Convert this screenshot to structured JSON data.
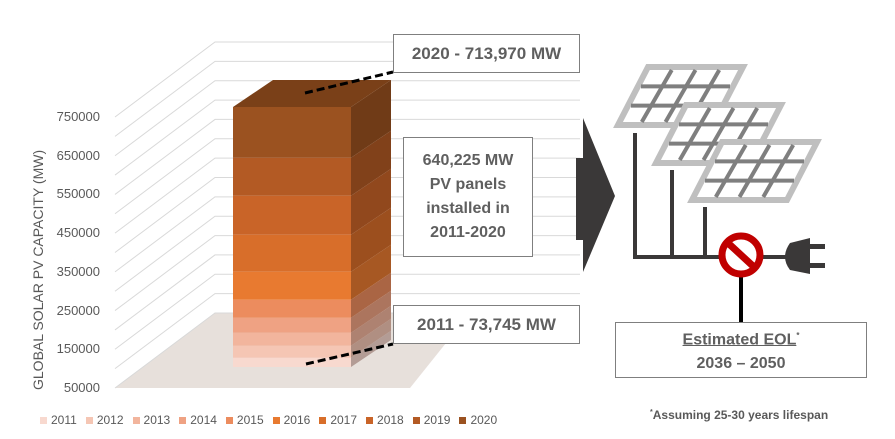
{
  "chart_data": {
    "type": "bar",
    "subtype": "3d-stacked-column",
    "ylabel": "GLOBAL SOLAR PV CAPACITY  (MW)",
    "ylim": [
      50000,
      750000
    ],
    "yticks": [
      "50000",
      "150000",
      "250000",
      "350000",
      "450000",
      "550000",
      "650000",
      "750000"
    ],
    "grid": true,
    "legend_position": "bottom",
    "series": [
      {
        "name": "2011",
        "value": 73745,
        "color": "#f8d9cf"
      },
      {
        "name": "2012",
        "value": 30600,
        "color": "#f5c6b4"
      },
      {
        "name": "2013",
        "value": 33200,
        "color": "#f2b59d"
      },
      {
        "name": "2014",
        "value": 38300,
        "color": "#efa283"
      },
      {
        "name": "2015",
        "value": 46000,
        "color": "#ec8c5e"
      },
      {
        "name": "2016",
        "value": 71500,
        "color": "#e87a30"
      },
      {
        "name": "2017",
        "value": 94500,
        "color": "#d86e2a"
      },
      {
        "name": "2018",
        "value": 99600,
        "color": "#c96428"
      },
      {
        "name": "2019",
        "value": 97000,
        "color": "#b35a24"
      },
      {
        "name": "2020",
        "value": 129525,
        "color": "#9b5220"
      }
    ]
  },
  "annotations": {
    "top_label": "2020 - 713,970 MW",
    "bottom_label": "2011  -  73,745 MW",
    "middle_lines": [
      "640,225 MW",
      "PV panels",
      "installed in",
      "2011-2020"
    ],
    "eol_title": "Estimated EOL",
    "eol_mark": "*",
    "eol_range": "2036 – 2050",
    "footnote_mark": "*",
    "footnote": "Assuming 25-30 years lifespan"
  },
  "icons": [
    "right-arrow-icon",
    "solar-panel-icon",
    "prohibited-icon",
    "plug-icon"
  ],
  "colors": {
    "arrow": "#3a3838",
    "panel_frame": "#bfbfbf",
    "panel_grid": "#7f7f7f",
    "prohibit": "#c00000",
    "floor": "#e7e0db"
  }
}
